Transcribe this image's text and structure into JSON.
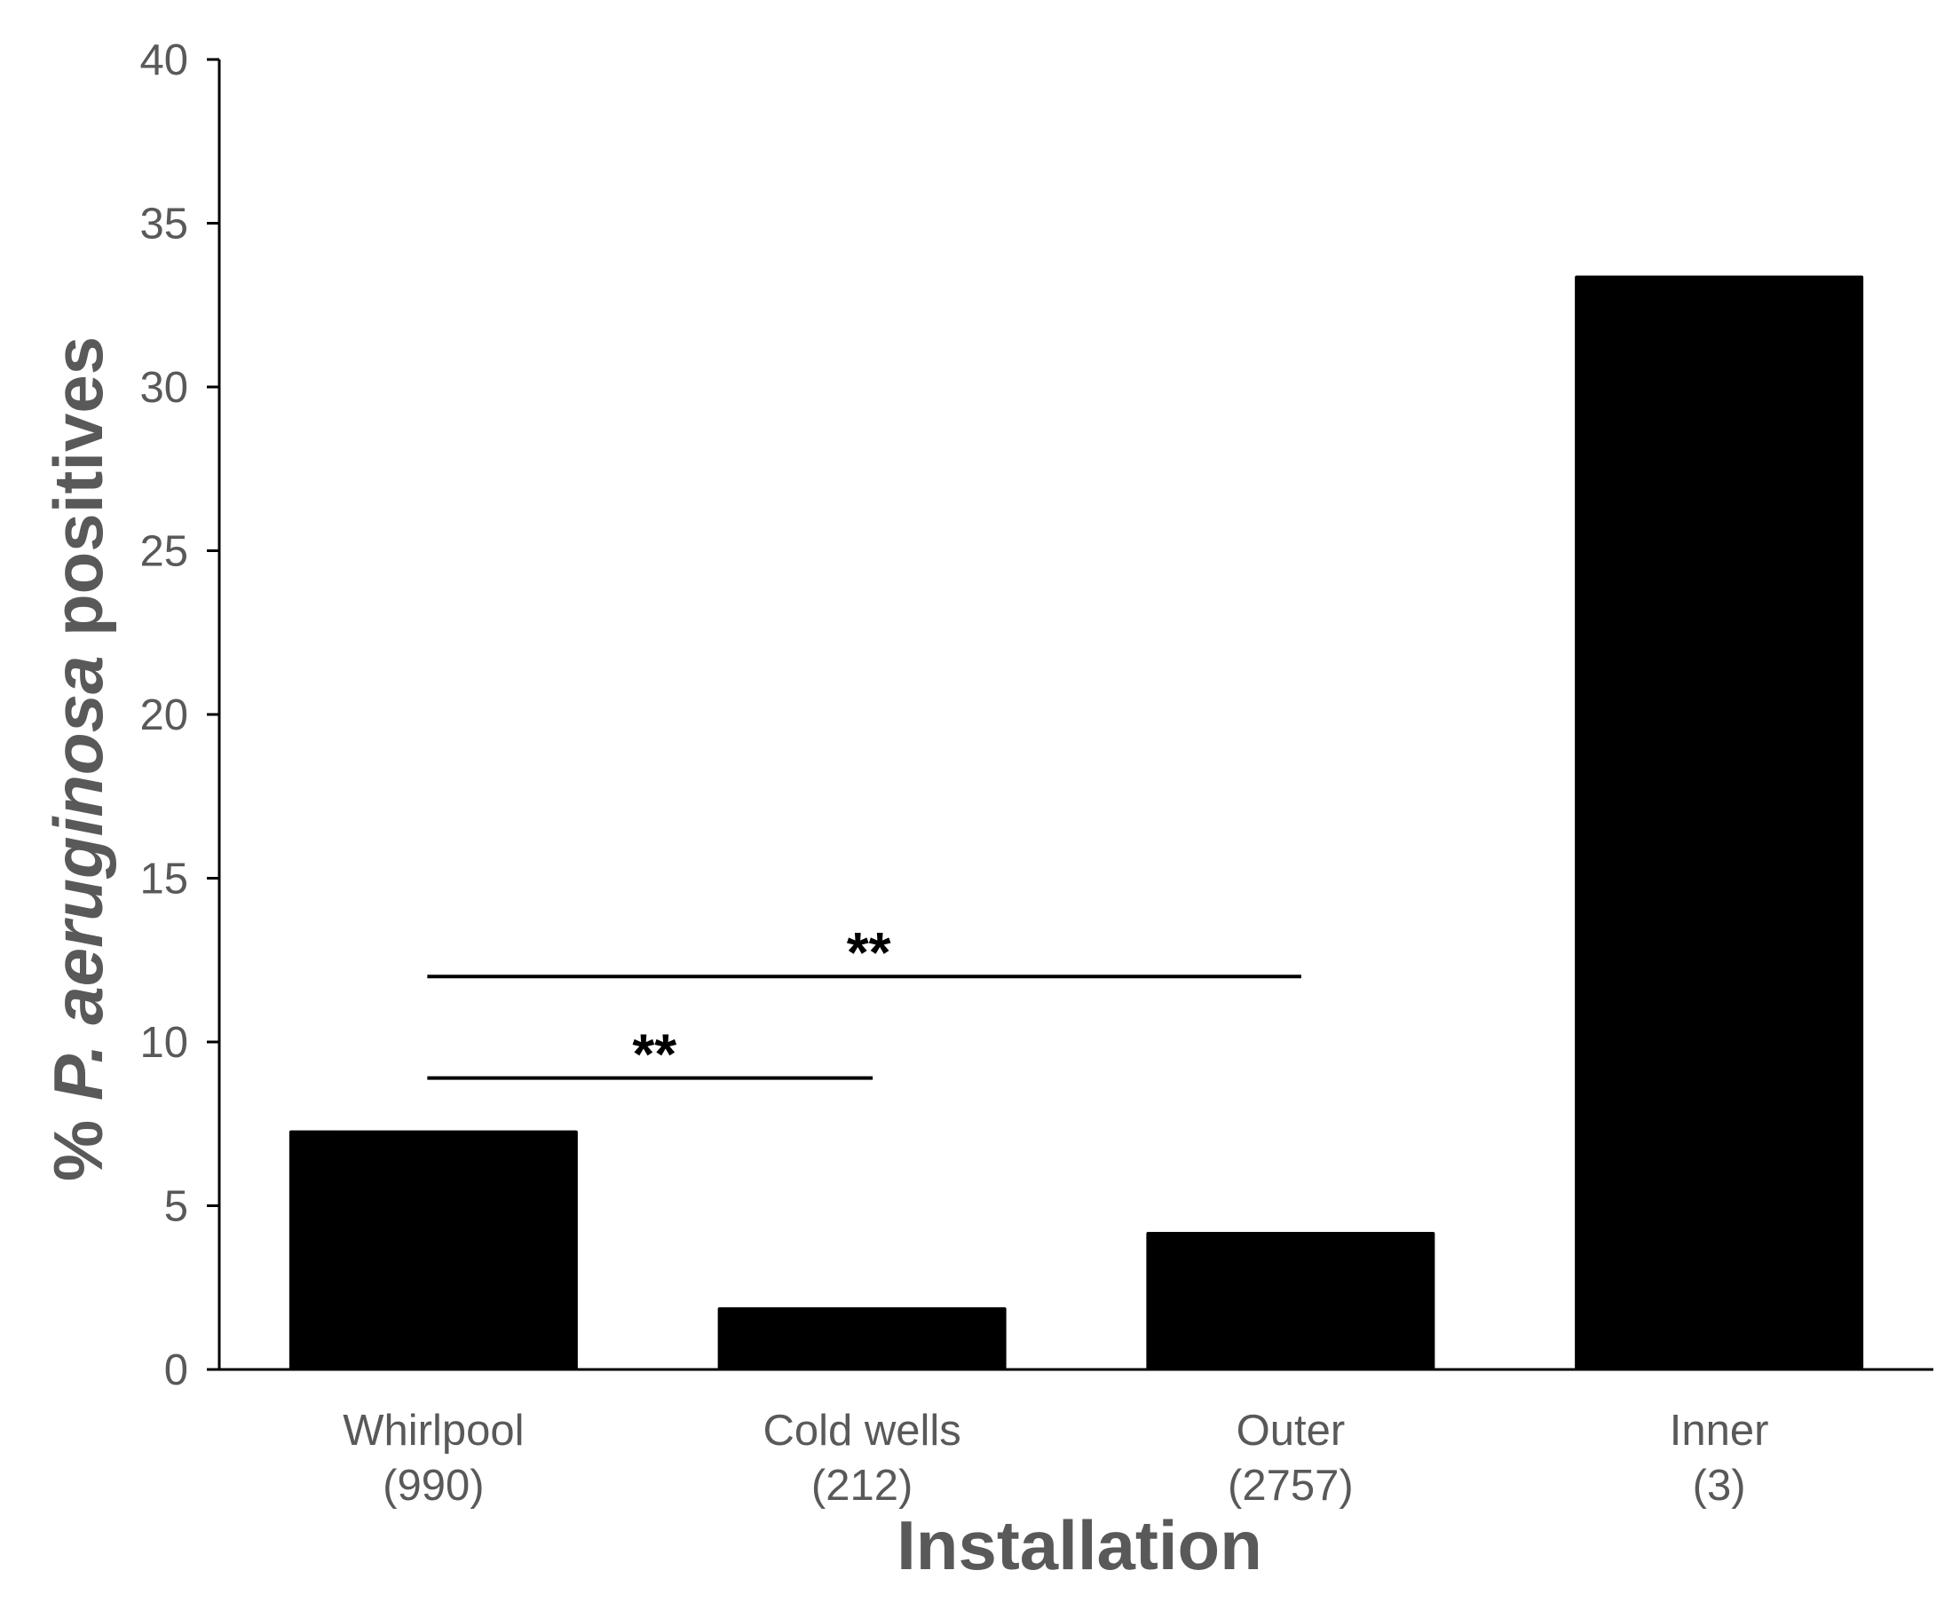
{
  "chart_data": {
    "type": "bar",
    "categories": [
      "Whirlpool",
      "Cold wells",
      "Outer",
      "Inner"
    ],
    "category_counts": [
      "(990)",
      "(212)",
      "(2757)",
      "(3)"
    ],
    "values": [
      7.3,
      1.9,
      4.2,
      33.4
    ],
    "xlabel": "Installation",
    "ylabel": {
      "prefix": "% ",
      "italic": "P. aeruginosa",
      "suffix": " positives"
    },
    "ylim": [
      0,
      40
    ],
    "yticks": [
      "0",
      "5",
      "10",
      "15",
      "20",
      "25",
      "30",
      "35",
      "40"
    ],
    "grid": false,
    "bar_color": "#000000",
    "significance": [
      {
        "from": "Whirlpool",
        "to": "Outer",
        "value": 12,
        "label": "**"
      },
      {
        "from": "Whirlpool",
        "to": "Cold wells",
        "value": 8.9,
        "label": "**"
      }
    ]
  }
}
